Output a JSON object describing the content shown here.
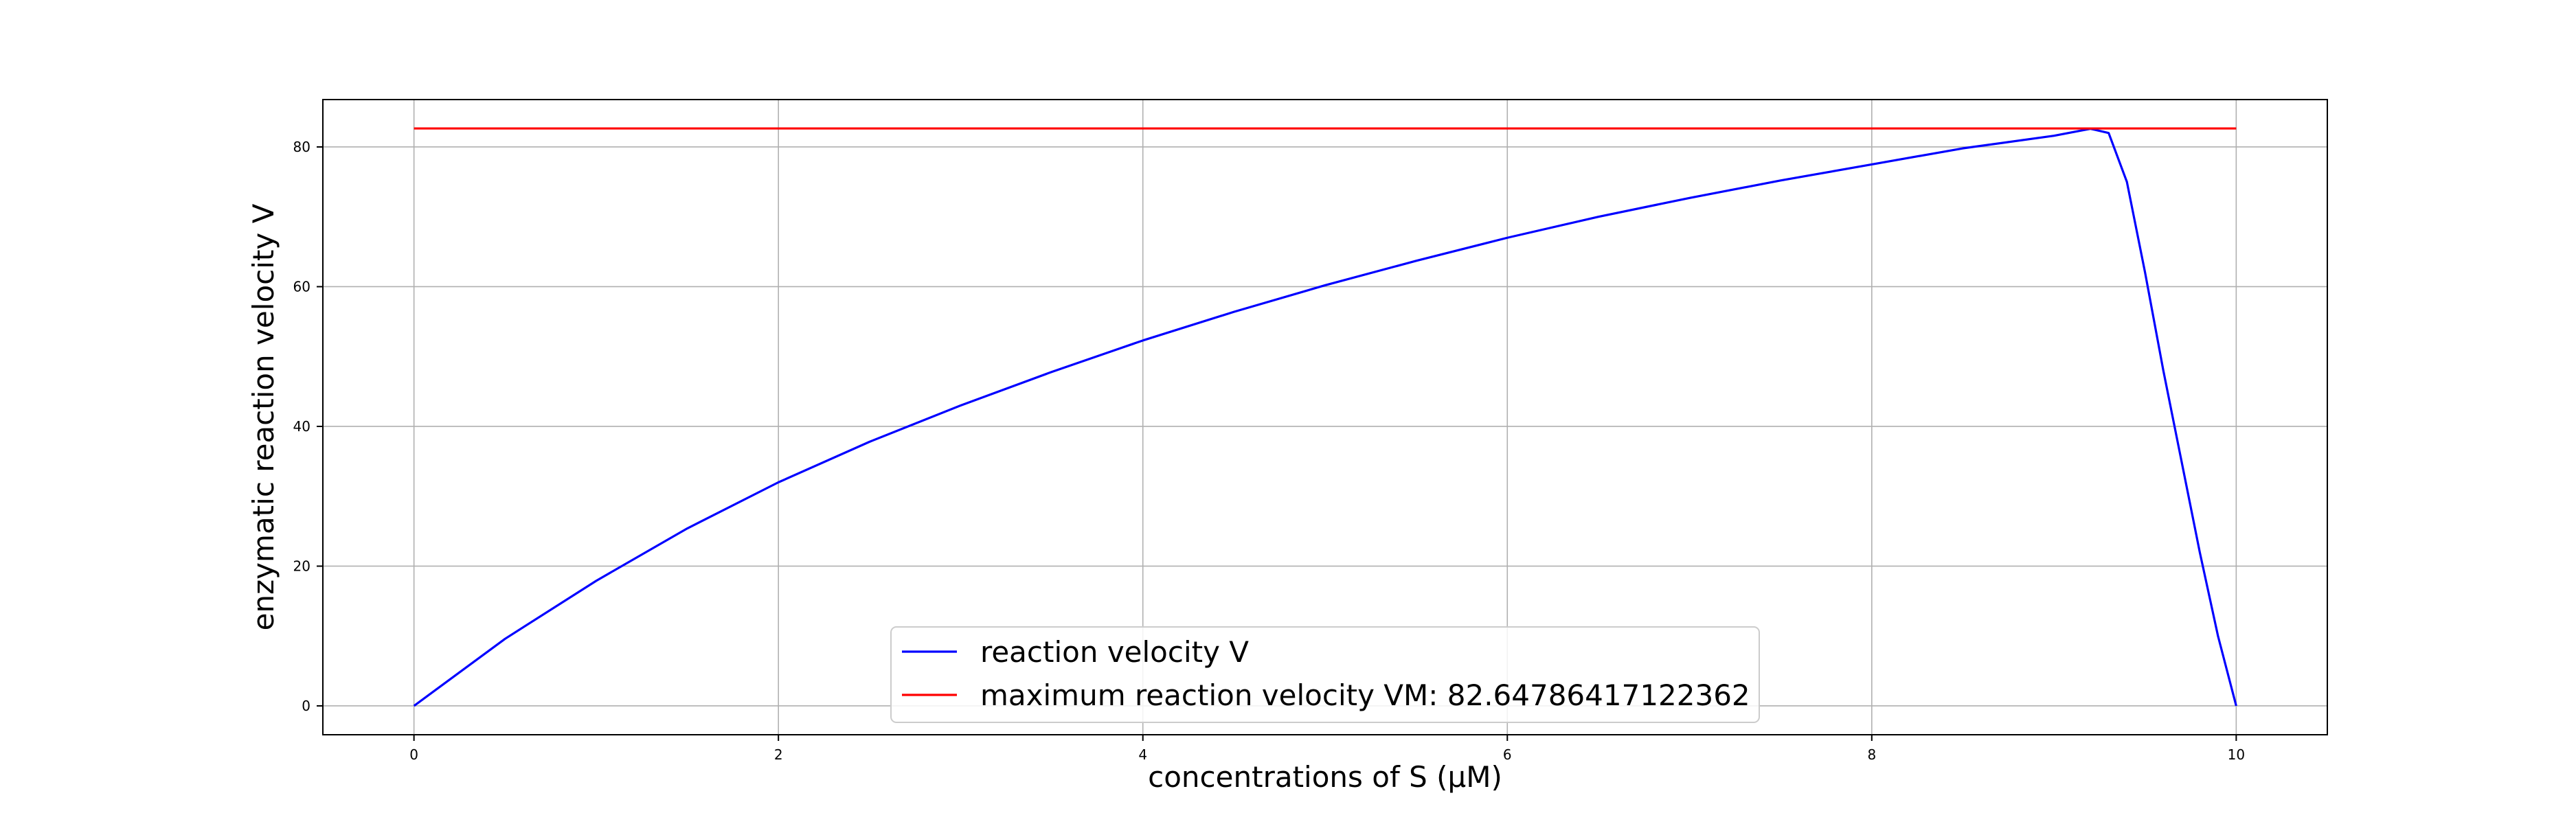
{
  "chart_data": {
    "type": "line",
    "title": "",
    "xlabel": "concentrations of S (μM)",
    "ylabel": "enzymatic reaction velocity V",
    "xlim": [
      -0.5,
      10.5
    ],
    "ylim": [
      -4.13,
      86.78
    ],
    "x_ticks": [
      0,
      2,
      4,
      6,
      8,
      10
    ],
    "y_ticks": [
      0,
      20,
      40,
      60,
      80
    ],
    "grid": true,
    "legend_position": "lower center",
    "series": [
      {
        "name": "reaction velocity V",
        "color": "#0000ff",
        "x": [
          0,
          0.5,
          1,
          1.5,
          2,
          2.5,
          3,
          3.5,
          4,
          4.5,
          5,
          5.5,
          6,
          6.5,
          7,
          7.5,
          8,
          8.5,
          9,
          9.2,
          9.3,
          9.4,
          9.5,
          9.6,
          9.7,
          9.8,
          9.9,
          10
        ],
        "y": [
          0,
          9.6,
          17.9,
          25.4,
          32.0,
          37.8,
          43.0,
          47.8,
          52.3,
          56.4,
          60.2,
          63.7,
          67.0,
          70.0,
          72.7,
          75.2,
          77.5,
          79.8,
          81.6,
          82.6,
          82.0,
          75.0,
          62.0,
          48.0,
          35.0,
          22.0,
          10.0,
          0
        ]
      },
      {
        "name": "maximum reaction velocity VM: 82.64786417122362",
        "color": "#ff0000",
        "x": [
          0,
          10
        ],
        "y": [
          82.64786417122362,
          82.64786417122362
        ]
      }
    ]
  }
}
